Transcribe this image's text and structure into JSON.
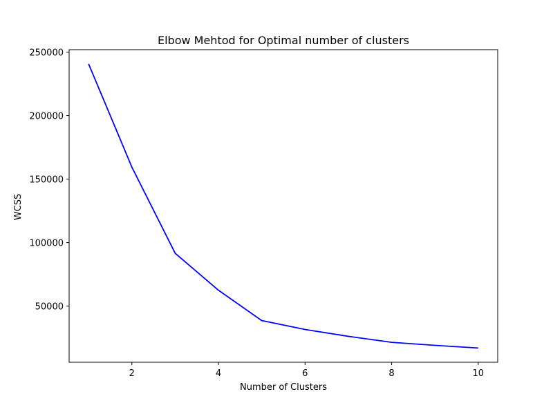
{
  "chart_data": {
    "type": "line",
    "title": "Elbow Mehtod for Optimal number of clusters",
    "xlabel": "Number of Clusters",
    "ylabel": "WCSS",
    "x": [
      1,
      2,
      3,
      4,
      5,
      6,
      7,
      8,
      9,
      10
    ],
    "series": [
      {
        "values": [
          240700,
          159400,
          91600,
          62500,
          38600,
          31600,
          26200,
          21500,
          19100,
          17000
        ],
        "color": "#0000ff"
      }
    ],
    "xlim": [
      0.55,
      10.45
    ],
    "ylim": [
      5800,
      251900
    ],
    "xticks": [
      2,
      4,
      6,
      8,
      10
    ],
    "yticks": [
      50000,
      100000,
      150000,
      200000,
      250000
    ],
    "grid": false,
    "legend": "none"
  }
}
